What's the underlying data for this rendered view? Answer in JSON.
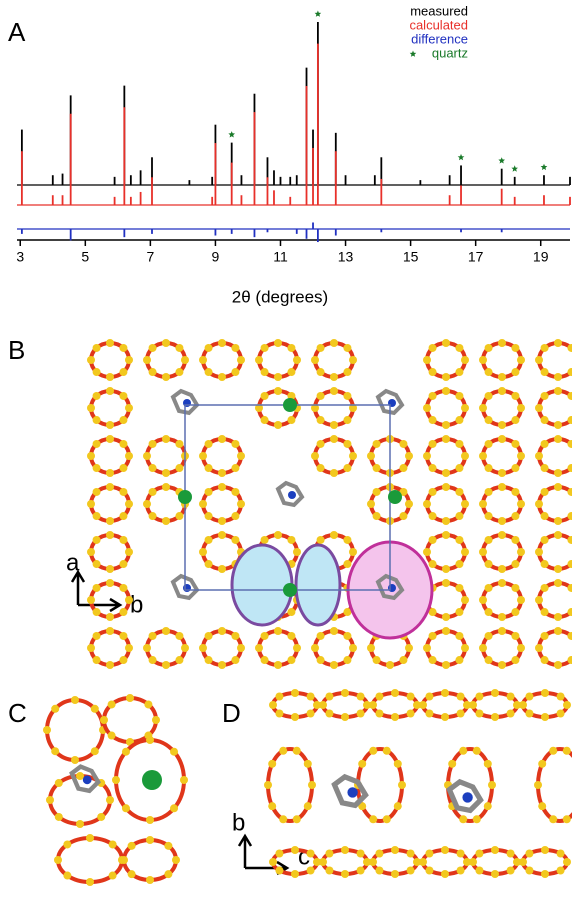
{
  "chart_data": {
    "type": "stick",
    "panel_label": "A",
    "x_label": "2θ (degrees)",
    "xlim": [
      2.9,
      19.9
    ],
    "xticks": [
      3,
      5,
      7,
      9,
      11,
      13,
      15,
      17,
      19
    ],
    "series": [
      {
        "name": "measured",
        "color": "#000000",
        "x": [
          3.05,
          4.0,
          4.3,
          4.55,
          5.9,
          6.2,
          6.4,
          6.7,
          7.05,
          8.2,
          8.9,
          9.0,
          9.5,
          9.8,
          10.2,
          10.6,
          10.8,
          11.0,
          11.3,
          11.5,
          11.8,
          12.0,
          12.15,
          12.7,
          13.0,
          13.9,
          14.1,
          15.3,
          16.2,
          16.55,
          17.8,
          18.2,
          19.1,
          19.9
        ],
        "values": [
          34,
          6,
          7,
          55,
          5,
          61,
          6,
          9,
          17,
          3,
          5,
          37,
          26,
          6,
          56,
          17,
          9,
          5,
          5,
          6,
          72,
          34,
          100,
          32,
          6,
          6,
          17,
          3,
          6,
          12,
          10,
          5,
          6,
          5
        ]
      },
      {
        "name": "calculated",
        "color": "#e8302a",
        "x": [
          3.05,
          4.0,
          4.3,
          4.55,
          5.9,
          6.2,
          6.4,
          6.7,
          7.05,
          8.9,
          9.0,
          9.5,
          9.8,
          10.2,
          10.6,
          10.8,
          11.3,
          11.8,
          12.0,
          12.15,
          12.7,
          14.1,
          16.2,
          16.55,
          17.8,
          18.2,
          19.1,
          19.9
        ],
        "values": [
          33,
          6,
          6,
          56,
          5,
          60,
          5,
          8,
          17,
          5,
          38,
          26,
          6,
          57,
          17,
          9,
          5,
          73,
          35,
          99,
          33,
          16,
          6,
          12,
          10,
          5,
          6,
          5
        ]
      },
      {
        "name": "difference",
        "color": "#2030c0",
        "x": [
          3.05,
          4.55,
          6.2,
          7.05,
          9.0,
          9.5,
          10.2,
          10.6,
          11.5,
          11.8,
          12.0,
          12.15,
          12.7,
          14.1,
          16.55,
          17.8
        ],
        "values": [
          -3,
          -7,
          -5,
          -3,
          -4,
          -3,
          -5,
          -2,
          -3,
          -6,
          4,
          -8,
          -4,
          -2,
          -2,
          -2
        ]
      }
    ],
    "quartz_label": "quartz",
    "quartz_color": "#1a7a2a",
    "quartz_x": [
      9.5,
      12.15,
      16.55,
      17.8,
      18.2,
      19.1
    ]
  },
  "structure_panels": [
    {
      "label": "B",
      "axis_labels": [
        "a",
        "b"
      ]
    },
    {
      "label": "C"
    },
    {
      "label": "D",
      "axis_labels": [
        "b",
        "c"
      ]
    }
  ]
}
